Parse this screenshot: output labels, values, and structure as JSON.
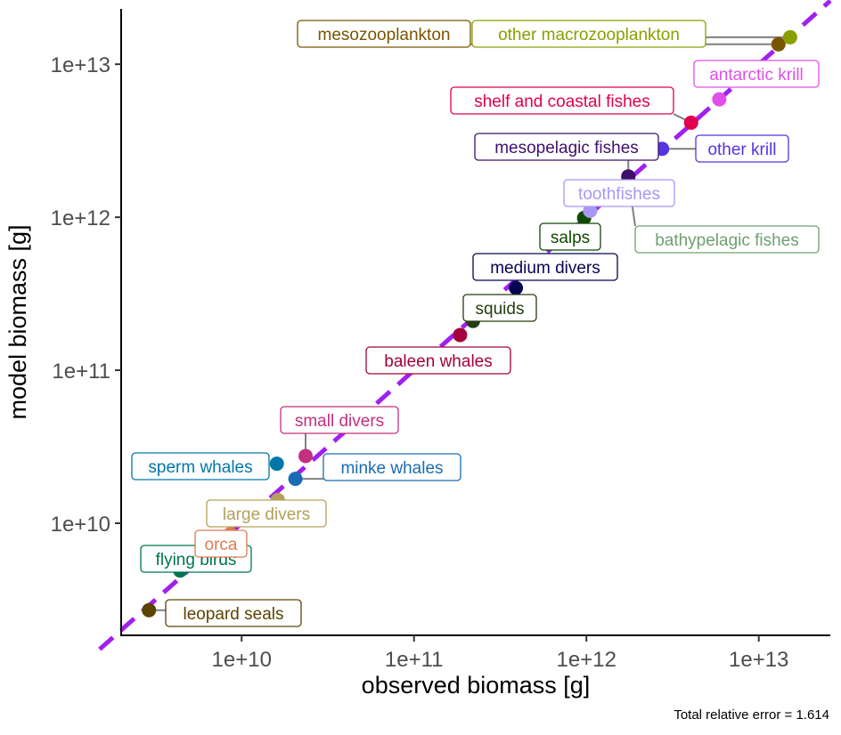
{
  "chart_data": {
    "type": "scatter",
    "xlabel": "observed biomass [g]",
    "ylabel": "model biomass [g]",
    "x_scale": "log10",
    "y_scale": "log10",
    "xlim": [
      2000000000.0,
      26000000000000.0
    ],
    "ylim": [
      1850000000.0,
      23000000000000.0
    ],
    "x_ticks": [
      {
        "value": 10000000000.0,
        "label": "1e+10"
      },
      {
        "value": 100000000000.0,
        "label": "1e+11"
      },
      {
        "value": 1000000000000.0,
        "label": "1e+12"
      },
      {
        "value": 10000000000000.0,
        "label": "1e+13"
      }
    ],
    "y_ticks": [
      {
        "value": 10000000000.0,
        "label": "1e+10"
      },
      {
        "value": 100000000000.0,
        "label": "1e+11"
      },
      {
        "value": 1000000000000.0,
        "label": "1e+12"
      },
      {
        "value": 10000000000000.0,
        "label": "1e+13"
      }
    ],
    "grid": false,
    "reference_line": {
      "type": "identity",
      "color": "#a020f0",
      "style": "dashed"
    },
    "caption": "Total relative error = 1.614",
    "points": [
      {
        "label": "leopard seals",
        "x": 2900000000.0,
        "y": 2700000000.0,
        "color": "#5c4300"
      },
      {
        "label": "flying birds",
        "x": 4400000000.0,
        "y": 4900000000.0,
        "color": "#00754f"
      },
      {
        "label": "orca",
        "x": 8600000000.0,
        "y": 8500000000.0,
        "color": "#e07a50"
      },
      {
        "label": "large divers",
        "x": 16200000000.0,
        "y": 14200000000.0,
        "color": "#b3a05a"
      },
      {
        "label": "sperm whales",
        "x": 16000000000.0,
        "y": 24500000000.0,
        "color": "#0077a8"
      },
      {
        "label": "minke whales",
        "x": 20500000000.0,
        "y": 19500000000.0,
        "color": "#1a6cb2"
      },
      {
        "label": "small divers",
        "x": 23500000000.0,
        "y": 27500000000.0,
        "color": "#c2307f"
      },
      {
        "label": "baleen whales",
        "x": 185000000000.0,
        "y": 170000000000.0,
        "color": "#a3003d"
      },
      {
        "label": "squids",
        "x": 220000000000.0,
        "y": 210000000000.0,
        "color": "#243d12"
      },
      {
        "label": "medium divers",
        "x": 390000000000.0,
        "y": 345000000000.0,
        "color": "#060650"
      },
      {
        "label": "salps",
        "x": 970000000000.0,
        "y": 990000000000.0,
        "color": "#0e4a00"
      },
      {
        "label": "toothfishes",
        "x": 1050000000000.0,
        "y": 1100000000000.0,
        "color": "#a897f5"
      },
      {
        "label": "bathypelagic fishes",
        "x": 1750000000000.0,
        "y": 1800000000000.0,
        "color": "#6fa06e"
      },
      {
        "label": "mesopelagic fishes",
        "x": 1750000000000.0,
        "y": 1850000000000.0,
        "color": "#3f1069"
      },
      {
        "label": "other krill",
        "x": 2750000000000.0,
        "y": 2800000000000.0,
        "color": "#5533e0"
      },
      {
        "label": "shelf and coastal fishes",
        "x": 4050000000000.0,
        "y": 4150000000000.0,
        "color": "#e0004d"
      },
      {
        "label": "antarctic krill",
        "x": 5900000000000.0,
        "y": 5900000000000.0,
        "color": "#e050e8"
      },
      {
        "label": "mesozooplankton",
        "x": 13000000000000.0,
        "y": 13500000000000.0,
        "color": "#7a5500"
      },
      {
        "label": "other macrozooplankton",
        "x": 15200000000000.0,
        "y": 15000000000000.0,
        "color": "#8aa000"
      }
    ]
  }
}
